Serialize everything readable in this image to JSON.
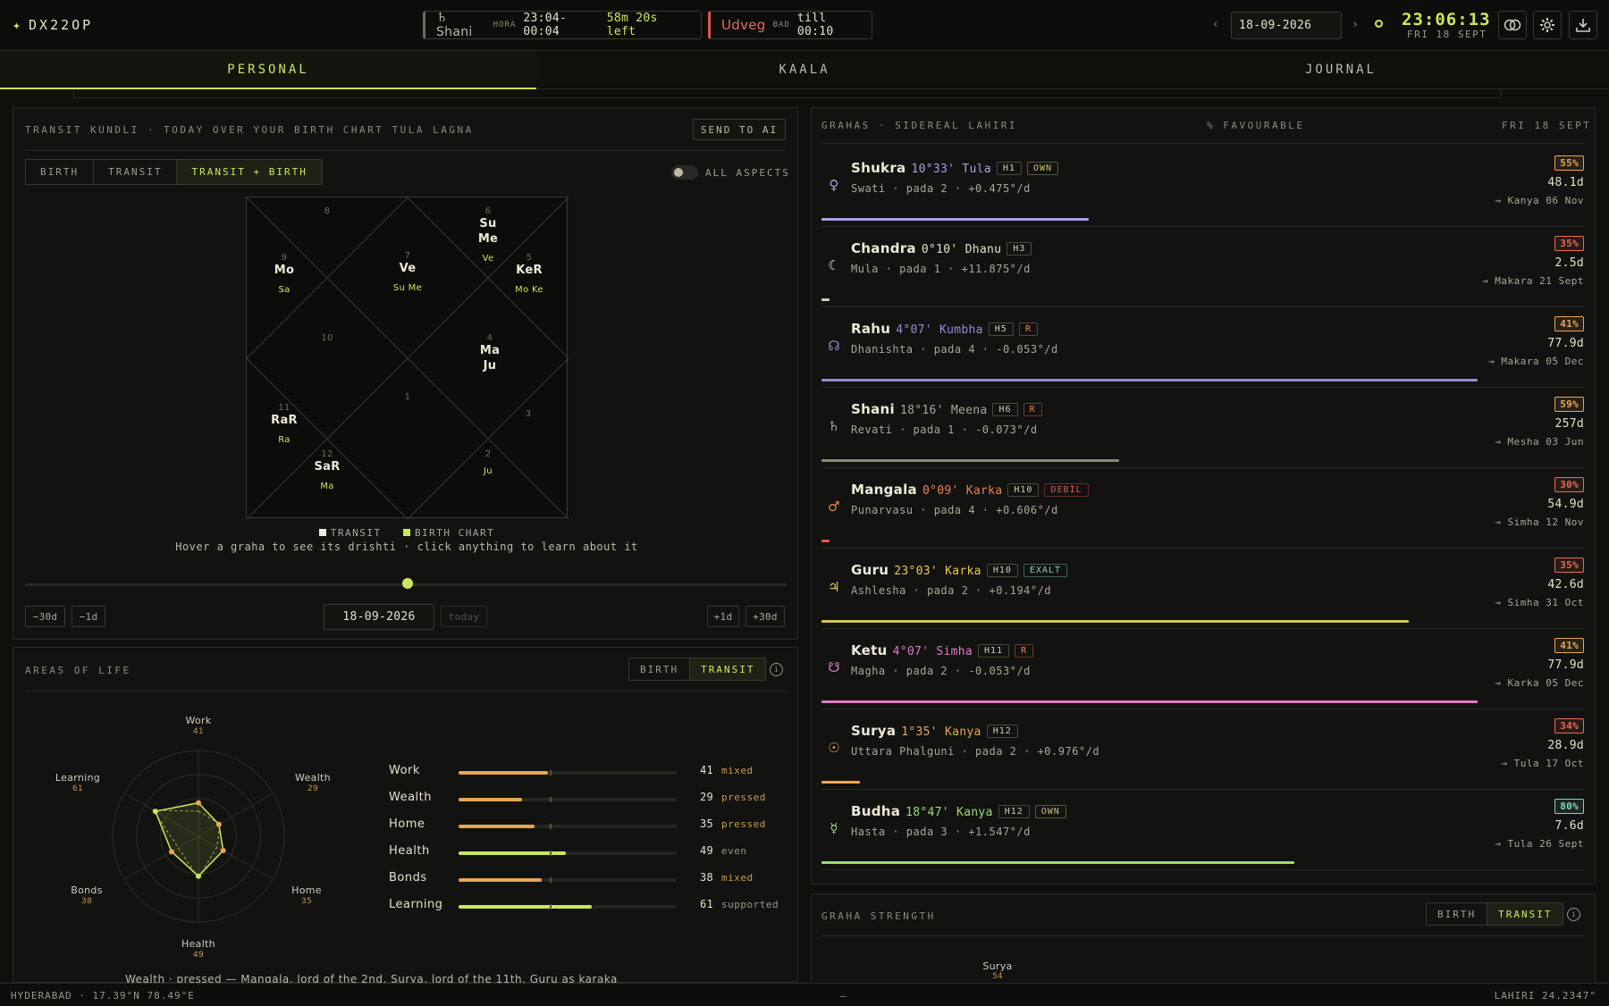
{
  "app": {
    "logo": "DX22OP"
  },
  "hora": {
    "planet": "♄ Shani",
    "tag": "HORA",
    "time": "23:04-00:04",
    "left": "58m 20s left"
  },
  "udveg": {
    "name": "Udveg",
    "tag": "BAD",
    "till": "till 00:10"
  },
  "header": {
    "date": "18-09-2026",
    "clock": "23:06:13",
    "day": "FRI 18 SEPT",
    "prev": "‹",
    "next": "›"
  },
  "tabs": [
    "PERSONAL",
    "KAALA",
    "JOURNAL"
  ],
  "kundli": {
    "title": "TRANSIT KUNDLI · TODAY OVER YOUR BIRTH CHART TULA LAGNA",
    "send": "SEND TO AI",
    "modes": [
      "BIRTH",
      "TRANSIT",
      "TRANSIT + BIRTH"
    ],
    "active_mode": "TRANSIT + BIRTH",
    "all_aspects": "ALL ASPECTS",
    "houses": [
      {
        "n": "1",
        "transit": "",
        "birth": ""
      },
      {
        "n": "2",
        "transit": "",
        "birth": "Ju"
      },
      {
        "n": "3",
        "transit": "",
        "birth": ""
      },
      {
        "n": "4",
        "transit": "Ma\nJu",
        "birth": ""
      },
      {
        "n": "5",
        "transit": "KeR",
        "birth": "Mo Ke"
      },
      {
        "n": "6",
        "transit": "Su\nMe",
        "birth": "Ve"
      },
      {
        "n": "7",
        "transit": "Ve",
        "birth": "Su Me"
      },
      {
        "n": "8",
        "transit": "",
        "birth": ""
      },
      {
        "n": "9",
        "transit": "Mo",
        "birth": "Sa"
      },
      {
        "n": "10",
        "transit": "",
        "birth": ""
      },
      {
        "n": "11",
        "transit": "RaR",
        "birth": "Ra"
      },
      {
        "n": "12",
        "transit": "SaR",
        "birth": "Ma"
      }
    ],
    "legend_transit": "TRANSIT",
    "legend_birth": "BIRTH CHART",
    "hint": "Hover a graha to see its drishti · click anything to learn about it",
    "btn_m30": "−30d",
    "btn_m1": "−1d",
    "btn_p1": "+1d",
    "btn_p30": "+30d",
    "date": "18-09-2026",
    "today": "today"
  },
  "areas": {
    "title": "AREAS OF LIFE",
    "modes": [
      "BIRTH",
      "TRANSIT"
    ],
    "items": [
      {
        "name": "Work",
        "value": 41,
        "status": "mixed",
        "color": "#e8a654"
      },
      {
        "name": "Wealth",
        "value": 29,
        "status": "pressed",
        "color": "#e8a654"
      },
      {
        "name": "Home",
        "value": 35,
        "status": "pressed",
        "color": "#e8a654"
      },
      {
        "name": "Health",
        "value": 49,
        "status": "even",
        "color": "#c8ea5a"
      },
      {
        "name": "Bonds",
        "value": 38,
        "status": "mixed",
        "color": "#e8a654"
      },
      {
        "name": "Learning",
        "value": 61,
        "status": "supported",
        "color": "#c8ea5a"
      }
    ],
    "footer": "Wealth · pressed — Mangala, lord of the 2nd, Surya, lord of the 11th, Guru as karaka"
  },
  "grahas_panel": {
    "title": "GRAHAS · SIDEREAL LAHIRI",
    "mid": "% FAVOURABLE",
    "date": "FRI 18 SEPT"
  },
  "grahas": [
    {
      "icon": "♀",
      "name": "Shukra",
      "pos": "10°33' Tula",
      "house": "H1",
      "badge": "OWN",
      "badge_color": "#c8c27a",
      "color": "#a9a0e0",
      "nak": "Swati · pada 2  ·  +0.475°/d",
      "pct": "55%",
      "pct_color": "#e8a654",
      "days": "48.1d",
      "next": "→ Kanya 06 Nov",
      "bar": 0.35,
      "bar_color": "#a9a0e0"
    },
    {
      "icon": "☾",
      "name": "Chandra",
      "pos": "0°10' Dhanu",
      "house": "H3",
      "badge": "",
      "badge_color": "",
      "color": "#e4e1cc",
      "nak": "Mula · pada 1  ·  +11.875°/d",
      "pct": "35%",
      "pct_color": "#e86b5c",
      "days": "2.5d",
      "next": "→ Makara 21 Sept",
      "bar": 0.01,
      "bar_color": "#cfcdbd"
    },
    {
      "icon": "☊",
      "name": "Rahu",
      "pos": "4°07' Kumbha",
      "house": "H5",
      "badge": "R",
      "badge_color": "#e8854e",
      "color": "#9b8ad8",
      "nak": "Dhanishta · pada 4  ·  -0.053°/d",
      "pct": "41%",
      "pct_color": "#e8a654",
      "days": "77.9d",
      "next": "→ Makara 05 Dec",
      "bar": 0.86,
      "bar_color": "#9b8ad8"
    },
    {
      "icon": "♄",
      "name": "Shani",
      "pos": "18°16' Meena",
      "house": "H6",
      "badge": "R",
      "badge_color": "#e8854e",
      "color": "#a9a795",
      "nak": "Revati · pada 1  ·  -0.073°/d",
      "pct": "59%",
      "pct_color": "#e8a654",
      "days": "257d",
      "next": "→ Mesha 03 Jun",
      "bar": 0.39,
      "bar_color": "#8c8a78"
    },
    {
      "icon": "♂",
      "name": "Mangala",
      "pos": "0°09' Karka",
      "house": "H10",
      "badge": "DEBIL",
      "badge_color": "#e8574e",
      "color": "#e8854e",
      "nak": "Punarvasu · pada 4  ·  +0.606°/d",
      "pct": "30%",
      "pct_color": "#e86b5c",
      "days": "54.9d",
      "next": "→ Simha 12 Nov",
      "bar": 0.01,
      "bar_color": "#e8574e"
    },
    {
      "icon": "♃",
      "name": "Guru",
      "pos": "23°03' Karka",
      "house": "H10",
      "badge": "EXALT",
      "badge_color": "#7ed8b0",
      "color": "#e8c84e",
      "nak": "Ashlesha · pada 2  ·  +0.194°/d",
      "pct": "35%",
      "pct_color": "#e86b5c",
      "days": "42.6d",
      "next": "→ Simha 31 Oct",
      "bar": 0.77,
      "bar_color": "#d8c45a"
    },
    {
      "icon": "☋",
      "name": "Ketu",
      "pos": "4°07' Simha",
      "house": "H11",
      "badge": "R",
      "badge_color": "#e8854e",
      "color": "#e07ac8",
      "nak": "Magha · pada 2  ·  -0.053°/d",
      "pct": "41%",
      "pct_color": "#e8a654",
      "days": "77.9d",
      "next": "→ Karka 05 Dec",
      "bar": 0.86,
      "bar_color": "#e07ac8"
    },
    {
      "icon": "☉",
      "name": "Surya",
      "pos": "1°35' Kanya",
      "house": "H12",
      "badge": "",
      "badge_color": "",
      "color": "#e8a654",
      "nak": "Uttara Phalguni · pada 2  ·  +0.976°/d",
      "pct": "34%",
      "pct_color": "#e86b5c",
      "days": "28.9d",
      "next": "→ Tula 17 Oct",
      "bar": 0.05,
      "bar_color": "#e8a654"
    },
    {
      "icon": "☿",
      "name": "Budha",
      "pos": "18°47' Kanya",
      "house": "H12",
      "badge": "OWN",
      "badge_color": "#c8c27a",
      "color": "#9ed87a",
      "nak": "Hasta · pada 3  ·  +1.547°/d",
      "pct": "80%",
      "pct_color": "#7ed8b0",
      "days": "7.6d",
      "next": "→ Tula 26 Sept",
      "bar": 0.62,
      "bar_color": "#9ed87a"
    }
  ],
  "strength": {
    "title": "GRAHA STRENGTH",
    "modes": [
      "BIRTH",
      "TRANSIT"
    ],
    "top_label": "Surya",
    "top_value": "54"
  },
  "status": {
    "location": "HYDERABAD · 17.39°N 78.49°E",
    "mid": "—",
    "ayanamsa": "LAHIRI 24.2347°"
  }
}
